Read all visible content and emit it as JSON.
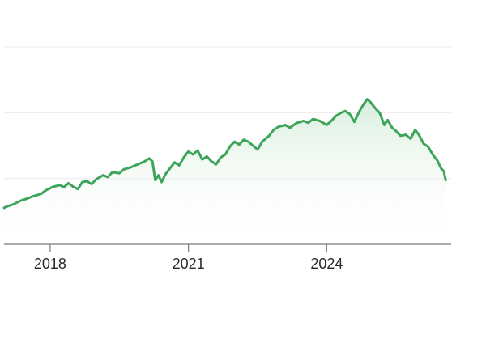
{
  "colors": {
    "line": "#3da55a",
    "area_top": "#d4ecd9",
    "area_bottom": "#ffffff",
    "grid": "#e9e9e9",
    "axis": "#7a7a7a",
    "tick_text": "#2a2a2a",
    "background": "#ffffff"
  },
  "chart_data": {
    "type": "area",
    "title": "",
    "xlabel": "",
    "ylabel": "",
    "grid": "horizontal",
    "legend": "none",
    "x_ticks": [
      "2018",
      "2021",
      "2024"
    ],
    "x_tick_values": [
      2018.0,
      2021.0,
      2024.0
    ],
    "xlim": [
      2017.0,
      2026.7
    ],
    "ylim": [
      0,
      100
    ],
    "y_tick_values": [
      33.3,
      66.7,
      100
    ],
    "series": [
      {
        "values": [
          [
            2017.0,
            18.5
          ],
          [
            2017.1,
            19.5
          ],
          [
            2017.2,
            20.2
          ],
          [
            2017.35,
            22.0
          ],
          [
            2017.5,
            23.2
          ],
          [
            2017.65,
            24.5
          ],
          [
            2017.8,
            25.5
          ],
          [
            2017.9,
            27.2
          ],
          [
            2018.05,
            29.0
          ],
          [
            2018.2,
            30.0
          ],
          [
            2018.3,
            29.0
          ],
          [
            2018.4,
            31.0
          ],
          [
            2018.5,
            29.2
          ],
          [
            2018.6,
            28.0
          ],
          [
            2018.7,
            31.5
          ],
          [
            2018.8,
            32.0
          ],
          [
            2018.9,
            30.5
          ],
          [
            2019.0,
            33.0
          ],
          [
            2019.15,
            35.0
          ],
          [
            2019.25,
            34.0
          ],
          [
            2019.35,
            36.5
          ],
          [
            2019.5,
            36.0
          ],
          [
            2019.6,
            38.0
          ],
          [
            2019.75,
            39.0
          ],
          [
            2019.9,
            40.5
          ],
          [
            2020.05,
            42.0
          ],
          [
            2020.15,
            43.5
          ],
          [
            2020.22,
            42.0
          ],
          [
            2020.28,
            32.5
          ],
          [
            2020.35,
            35.0
          ],
          [
            2020.42,
            31.5
          ],
          [
            2020.5,
            35.5
          ],
          [
            2020.6,
            38.5
          ],
          [
            2020.7,
            41.5
          ],
          [
            2020.8,
            40.0
          ],
          [
            2020.9,
            44.0
          ],
          [
            2021.0,
            47.0
          ],
          [
            2021.1,
            45.5
          ],
          [
            2021.2,
            47.5
          ],
          [
            2021.3,
            43.0
          ],
          [
            2021.4,
            44.5
          ],
          [
            2021.5,
            42.0
          ],
          [
            2021.6,
            40.5
          ],
          [
            2021.7,
            44.0
          ],
          [
            2021.8,
            45.5
          ],
          [
            2021.9,
            49.5
          ],
          [
            2022.0,
            52.0
          ],
          [
            2022.1,
            50.5
          ],
          [
            2022.2,
            53.0
          ],
          [
            2022.3,
            52.0
          ],
          [
            2022.4,
            50.0
          ],
          [
            2022.5,
            48.0
          ],
          [
            2022.6,
            52.0
          ],
          [
            2022.75,
            55.0
          ],
          [
            2022.85,
            58.0
          ],
          [
            2022.95,
            59.5
          ],
          [
            2023.1,
            60.5
          ],
          [
            2023.2,
            59.0
          ],
          [
            2023.35,
            61.5
          ],
          [
            2023.5,
            62.5
          ],
          [
            2023.6,
            61.5
          ],
          [
            2023.7,
            63.5
          ],
          [
            2023.85,
            62.5
          ],
          [
            2024.0,
            60.5
          ],
          [
            2024.1,
            62.5
          ],
          [
            2024.2,
            65.0
          ],
          [
            2024.3,
            66.5
          ],
          [
            2024.4,
            67.5
          ],
          [
            2024.5,
            66.0
          ],
          [
            2024.6,
            62.0
          ],
          [
            2024.7,
            67.0
          ],
          [
            2024.8,
            71.0
          ],
          [
            2024.88,
            73.5
          ],
          [
            2024.95,
            72.0
          ],
          [
            2025.05,
            69.0
          ],
          [
            2025.15,
            66.5
          ],
          [
            2025.25,
            60.5
          ],
          [
            2025.32,
            63.0
          ],
          [
            2025.42,
            59.0
          ],
          [
            2025.5,
            57.5
          ],
          [
            2025.6,
            55.0
          ],
          [
            2025.72,
            55.5
          ],
          [
            2025.82,
            53.5
          ],
          [
            2025.92,
            58.0
          ],
          [
            2026.0,
            55.5
          ],
          [
            2026.1,
            51.0
          ],
          [
            2026.2,
            49.5
          ],
          [
            2026.3,
            45.5
          ],
          [
            2026.4,
            42.5
          ],
          [
            2026.48,
            38.5
          ],
          [
            2026.54,
            37.0
          ],
          [
            2026.58,
            32.5
          ]
        ]
      }
    ]
  }
}
